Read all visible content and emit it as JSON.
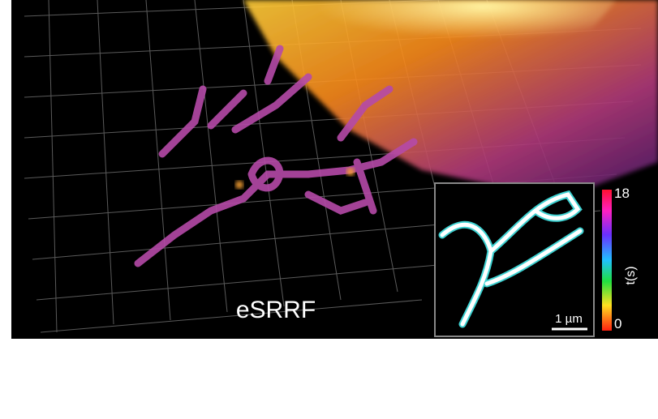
{
  "image": {
    "label": "eSRRF",
    "inset": {
      "scale_bar": "1 µm"
    },
    "colorbar": {
      "max": "18",
      "min": "0",
      "label": "t(s)"
    }
  }
}
